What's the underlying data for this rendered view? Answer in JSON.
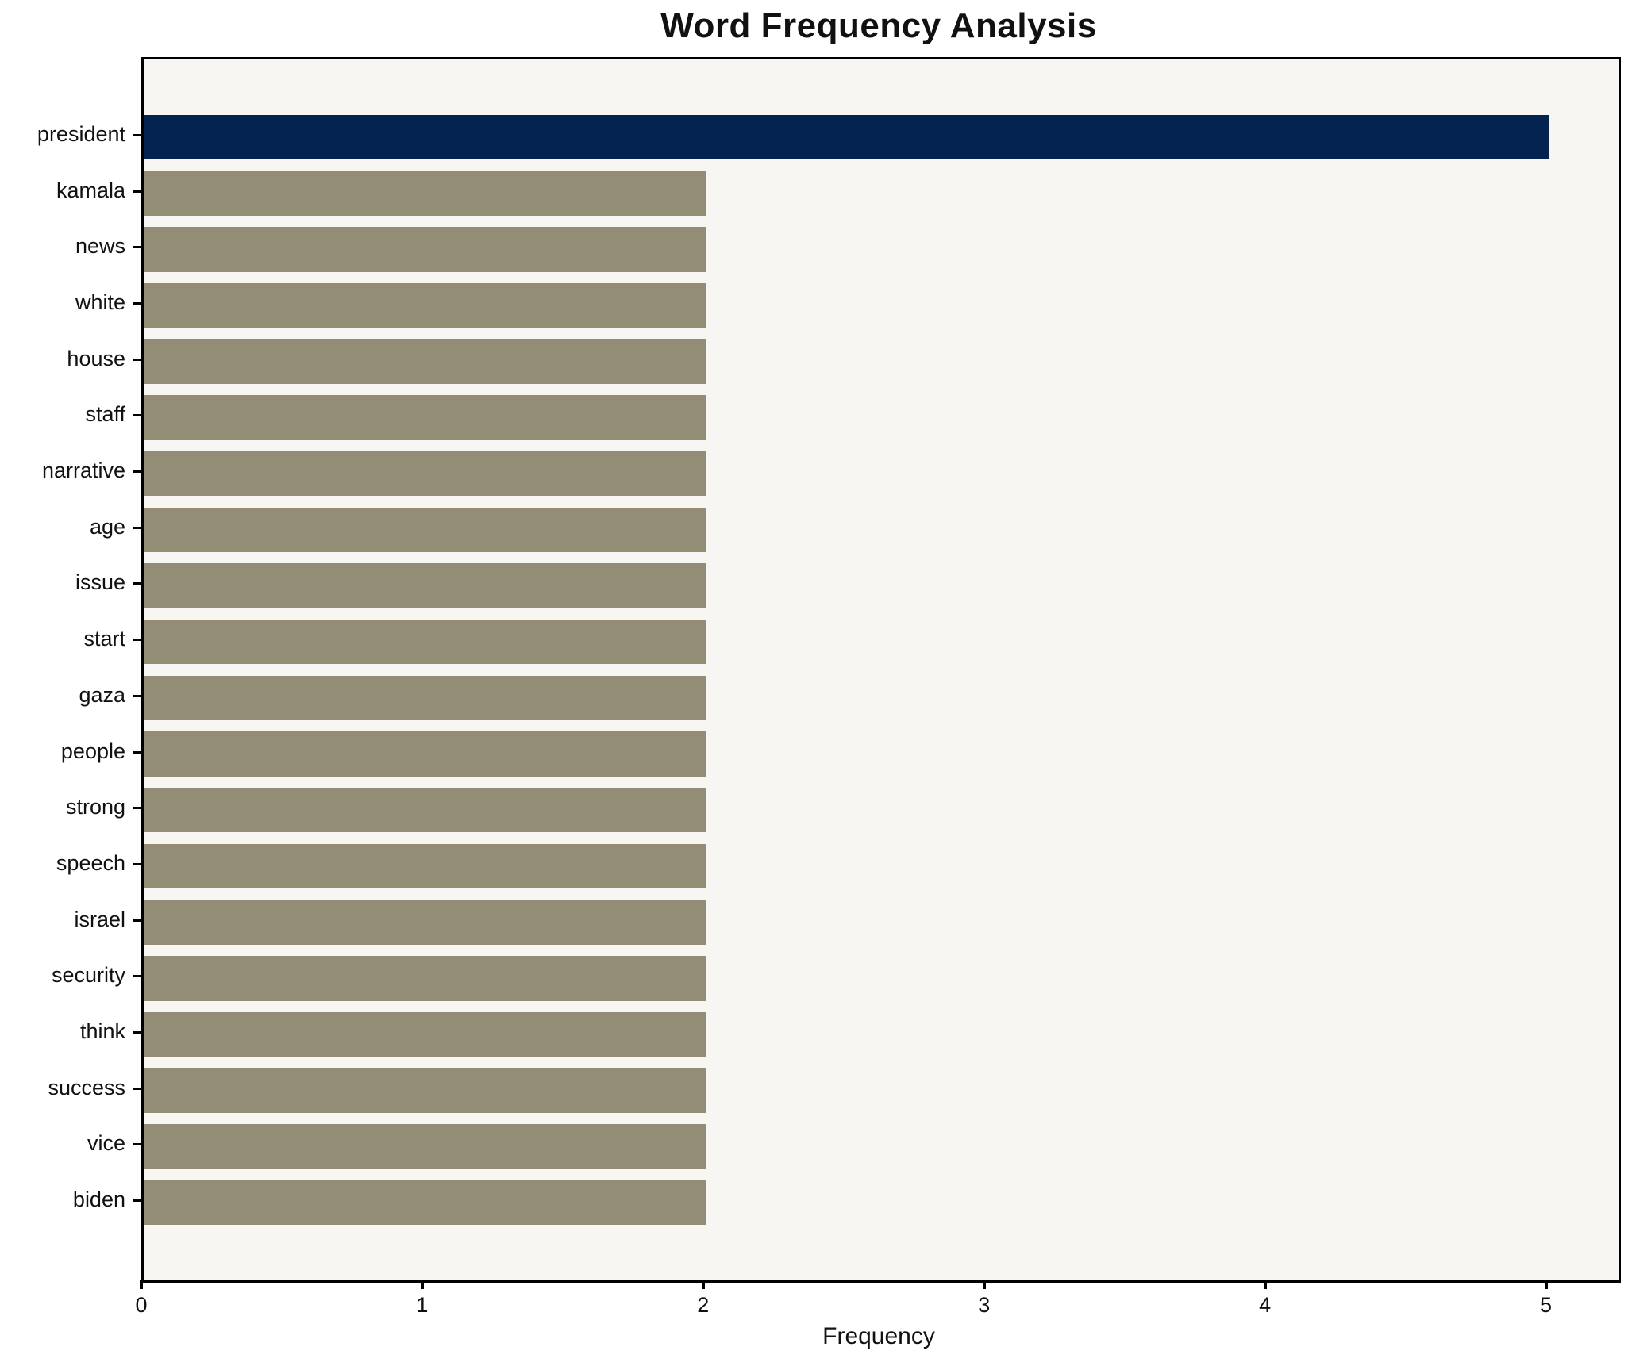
{
  "title": "Word Frequency Analysis",
  "chart_data": {
    "type": "bar",
    "orientation": "horizontal",
    "title": "Word Frequency Analysis",
    "xlabel": "Frequency",
    "ylabel": "",
    "categories": [
      "president",
      "kamala",
      "news",
      "white",
      "house",
      "staff",
      "narrative",
      "age",
      "issue",
      "start",
      "gaza",
      "people",
      "strong",
      "speech",
      "israel",
      "security",
      "think",
      "success",
      "vice",
      "biden"
    ],
    "values": [
      5,
      2,
      2,
      2,
      2,
      2,
      2,
      2,
      2,
      2,
      2,
      2,
      2,
      2,
      2,
      2,
      2,
      2,
      2,
      2
    ],
    "xticks": [
      0,
      1,
      2,
      3,
      4,
      5
    ],
    "xlim": [
      0,
      5.25
    ],
    "grid": false,
    "legend": null,
    "colors": {
      "highlight_bar": "#04234e",
      "default_bar": "#948d75",
      "plot_background": "#f7f6f3",
      "axis": "#000000",
      "text": "#111111"
    },
    "highlight_index": 0
  }
}
